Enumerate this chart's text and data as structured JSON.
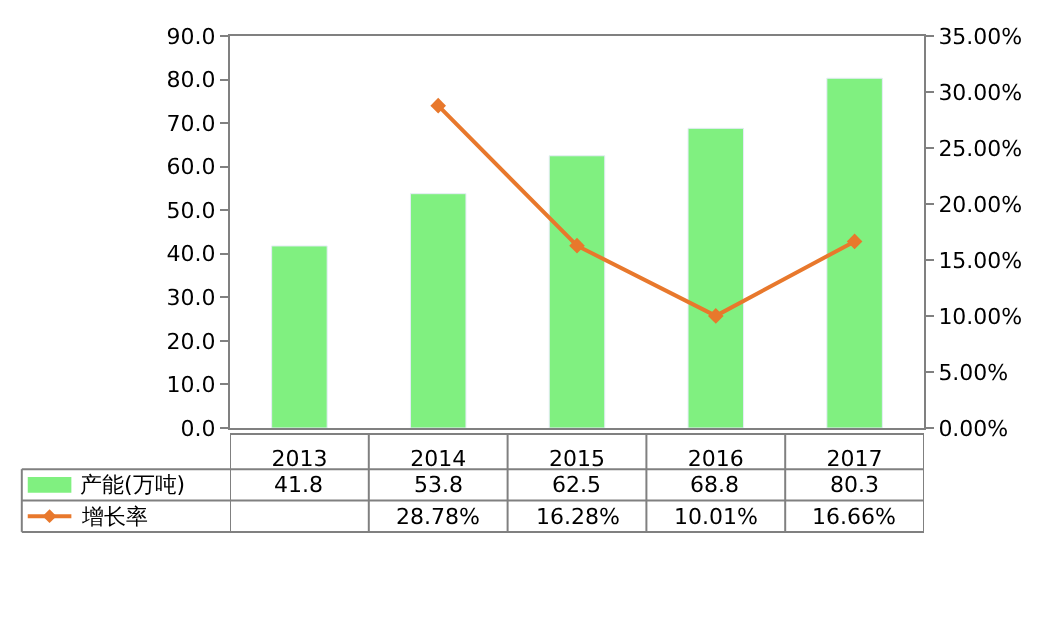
{
  "chart_data": {
    "type": "bar",
    "categories": [
      "2013",
      "2014",
      "2015",
      "2016",
      "2017"
    ],
    "series": [
      {
        "name": "产能(万吨)",
        "color": "#80f080",
        "values": [
          41.8,
          53.8,
          62.5,
          68.8,
          80.3
        ],
        "value_labels": [
          "41.8",
          "53.8",
          "62.5",
          "68.8",
          "80.3"
        ]
      },
      {
        "name": "增长率",
        "type": "line",
        "axis": "y2",
        "color": "#e8782c",
        "marker": "diamond",
        "values": [
          null,
          28.78,
          16.28,
          10.01,
          16.66
        ],
        "value_labels": [
          null,
          "28.78%",
          "16.28%",
          "10.01%",
          "16.66%"
        ]
      }
    ],
    "ylim": [
      0,
      90
    ],
    "yticks": [
      {
        "value": 0,
        "label": "0.0"
      },
      {
        "value": 10,
        "label": "10.0"
      },
      {
        "value": 20,
        "label": "20.0"
      },
      {
        "value": 30,
        "label": "30.0"
      },
      {
        "value": 40,
        "label": "40.0"
      },
      {
        "value": 50,
        "label": "50.0"
      },
      {
        "value": 60,
        "label": "60.0"
      },
      {
        "value": 70,
        "label": "70.0"
      },
      {
        "value": 80,
        "label": "80.0"
      },
      {
        "value": 90,
        "label": "90.0"
      }
    ],
    "y2lim": [
      0,
      35
    ],
    "y2ticks": [
      {
        "value": 0,
        "label": "0.00%"
      },
      {
        "value": 5,
        "label": "5.00%"
      },
      {
        "value": 10,
        "label": "10.00%"
      },
      {
        "value": 15,
        "label": "15.00%"
      },
      {
        "value": 20,
        "label": "20.00%"
      },
      {
        "value": 25,
        "label": "25.00%"
      },
      {
        "value": 30,
        "label": "30.00%"
      },
      {
        "value": 35,
        "label": "35.00%"
      }
    ],
    "grid": false,
    "legend": "bottom left"
  }
}
